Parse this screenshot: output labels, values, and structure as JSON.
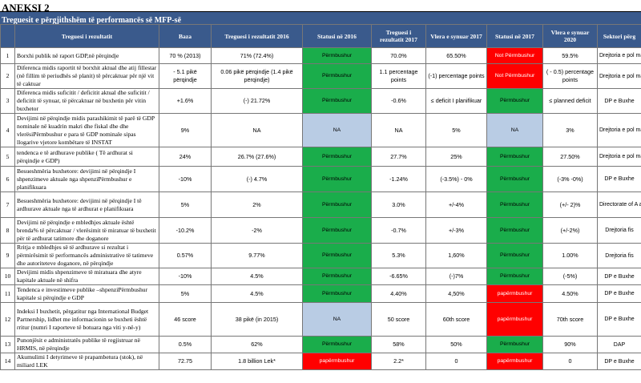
{
  "header": {
    "title": "ANEKSI 2",
    "subtitle": "Treguesit e përgjithshëm të performancës së MFP-së"
  },
  "columns": {
    "no": "",
    "indicator": "Treguesi i rezultatit",
    "baseline": "Baza",
    "ind2016": "Treguesi i rezultatit 2016",
    "status2016": "Statusi në 2016",
    "ind2017": "Treguesi i rezultatit 2017",
    "target2017": "Vlera e synuar 2017",
    "status2017": "Statusi në 2017",
    "target2020": "Vlera e synuar 2020",
    "sector": "Sektori përg"
  },
  "rows": [
    {
      "no": "1",
      "desc": "Borxhi publik në raport GDP,në përqindje",
      "baseline": "70 % (2013)",
      "v2016": "71% (72.4%)",
      "s2016": "Përmbushur",
      "s2016c": "green",
      "v2017": "70.0%",
      "t2017": "65.50%",
      "s2017": "Not Përmbushur",
      "s2017c": "red",
      "t2020": "59.5%",
      "sector": "Drejtoria e pol makro-ekono",
      "h": 20
    },
    {
      "no": "2",
      "desc": "Diferenca midis raportit të borxhit aktual dhe atij fillestar (në fillim të periudhës së planit) të përcaktuar për një vit të caktuar",
      "baseline": "- 5.1 pikë përqindje",
      "v2016": "0.06 pikë përqindje (1.4 pikë përqindje)",
      "s2016": "Përmbushur",
      "s2016c": "green",
      "v2017": "1.1 percentage points",
      "t2017": "(-1) percentage points",
      "s2017": "Not Përmbushur",
      "s2017c": "red",
      "t2020": "( - 0.5) percentage points",
      "sector": "Drejtoria e pol makro-ekono",
      "h": 30
    },
    {
      "no": "3",
      "desc": "Diferenca midis suficitit / deficitit aktual dhe suficitit / deficitit të synuar, të përcaktuar në buxhetin për vitin buxhetor",
      "baseline": "+1.6%",
      "v2016": "(-) 21.72%",
      "s2016": "Përmbushur",
      "s2016c": "green",
      "v2017": "-0.6%",
      "t2017": "≤ deficit I planifikuar",
      "s2017": "Përmbushur",
      "s2017c": "green",
      "t2020": "≤ planned deficit",
      "sector": "DP e Buxhe",
      "h": 31
    },
    {
      "no": "4",
      "desc": "Devijimi në përqindje midis parashikimit të parë të GDP nominale në kuadrin makri dhe fiskal dhe dhe vlerësiPërmbushur e para të GDP nominale sipas llogarive vjetore kombëtare të INSTAT",
      "baseline": "9%",
      "v2016": "NA",
      "s2016": "NA",
      "s2016c": "blue",
      "v2017": "NA",
      "t2017": "5%",
      "s2017": "NA",
      "s2017c": "blue",
      "t2020": "3%",
      "sector": "Drejtoria e pol makro-ekono",
      "h": 42
    },
    {
      "no": "5",
      "desc": "tendenca e të ardhurave publike ( Të ardhurat si përqindje e GDP)",
      "baseline": "24%",
      "v2016": "26.7% (27.6%)",
      "s2016": "Përmbushur",
      "s2016c": "green",
      "v2017": "27.7%",
      "t2017": "25%",
      "s2017": "Përmbushur",
      "s2017c": "green",
      "t2020": "27.50%",
      "sector": "Drejtoria e pol makro-ekono",
      "h": 24
    },
    {
      "no": "6",
      "desc": "Besueshmëria buxhetore: devijimi në përqindje I shpenzimeve aktuale nga shpenziPërmbushur e planifikuara",
      "baseline": "-10%",
      "v2016": "(-) 4.7%",
      "s2016": "Përmbushur",
      "s2016c": "green",
      "v2017": "-1.24%",
      "t2017": "(-3.5%) - 0%",
      "s2017": "Përmbushur",
      "s2017c": "green",
      "t2020": "(-3% -0%)",
      "sector": "DP e Buxhe",
      "h": 32
    },
    {
      "no": "7",
      "desc": "Besueshmëria buxhetore: devijimi në përqindje I të ardhurave aktuale nga të ardhurat e planifikuara",
      "baseline": "5%",
      "v2016": "2%",
      "s2016": "Përmbushur",
      "s2016c": "green",
      "v2017": "3.0%",
      "t2017": "+/-4%",
      "s2017": "Përmbushur",
      "s2017c": "green",
      "t2020": "(+/- 2)%",
      "sector": "Directorate of A and Monitoring Policies",
      "h": 32
    },
    {
      "no": "8",
      "desc": "Devijimi në përqindje e mbledhjes aktuale është brenda% të përcaktuar / vlerësimit të miratuar të buxhetit për të ardhurat tatimore dhe doganore",
      "baseline": "-10.2%",
      "v2016": "-2%",
      "s2016": "Përmbushur",
      "s2016c": "green",
      "v2017": "-0.7%",
      "t2017": "+/-3%",
      "s2017": "Përmbushur",
      "s2017c": "green",
      "t2020": "(+/-2%)",
      "sector": "Drejtoria fis",
      "h": 32
    },
    {
      "no": "9",
      "desc": "Rritja e mbledhjes së të ardhurave si rezultat i përmirësimit të performancës administrative të tatimeve dhe autoriteteve doganore, në përqindje",
      "baseline": "0.57%",
      "v2016": "9.77%",
      "s2016": "Përmbushur",
      "s2016c": "green",
      "v2017": "5.3%",
      "t2017": "1,60%",
      "s2017": "Përmbushur",
      "s2017c": "green",
      "t2020": "1.00%",
      "sector": "Drejtoria fis",
      "h": 30
    },
    {
      "no": "10",
      "desc": "Devijimi midis shpenzimeve të miratuara dhe atyre kapitale aktuale në shifra",
      "baseline": "-10%",
      "v2016": "4.5%",
      "s2016": "Përmbushur",
      "s2016c": "green",
      "v2017": "-6.65%",
      "t2017": "(-)7%",
      "s2017": "Përmbushur",
      "s2017c": "green",
      "t2020": "(-5%)",
      "sector": "DP e Buxhe",
      "h": 21
    },
    {
      "no": "11",
      "desc": "Tendenca e investimeve publike –shpenziPërmbushur kapitale si përqindje e GDP",
      "baseline": "5%",
      "v2016": "4.5%",
      "s2016": "Përmbushur",
      "s2016c": "green",
      "v2017": "4.40%",
      "t2017": "4,50%",
      "s2017": "papërmbushur",
      "s2017c": "red",
      "t2020": "4.50%",
      "sector": "DP e Buxhe",
      "h": 22
    },
    {
      "no": "12",
      "desc": "Indeksi I buxhetit, përgatitur nga International Budget Partnership, lidhet me informacionin se buxheti është rritur (numri I raporteve të botuara nga viti y-në-y)",
      "baseline": "46 score",
      "v2016": "38 pikë (in 2015)",
      "s2016": "NA",
      "s2016c": "blue",
      "v2017": "50 score",
      "t2017": "60th score",
      "s2017": "papërmbushur",
      "s2017c": "red",
      "t2020": "70th score",
      "sector": "DP e Buxhe",
      "h": 42
    },
    {
      "no": "13",
      "desc": "Punonjësit e administratës publike të regjistruar në HRMIS, në përqindje",
      "baseline": "0.5%",
      "v2016": "62%",
      "s2016": "Përmbushur",
      "s2016c": "green",
      "v2017": "58%",
      "t2017": "50%",
      "s2017": "Përmbushur",
      "s2017c": "green",
      "t2020": "90%",
      "sector": "DAP",
      "h": 21
    },
    {
      "no": "14",
      "desc": "Akumulimi I detyrimeve të prapambetura (stok), në miliard LEK",
      "baseline": "72.75",
      "v2016": "1.8 billion Lek*",
      "s2016": "papërmbushur",
      "s2016c": "red",
      "v2017": "2.2*",
      "t2017": "0",
      "s2017": "papërmbushur",
      "s2017c": "red",
      "t2020": "0",
      "sector": "DP e Buxhe",
      "h": 21
    }
  ]
}
